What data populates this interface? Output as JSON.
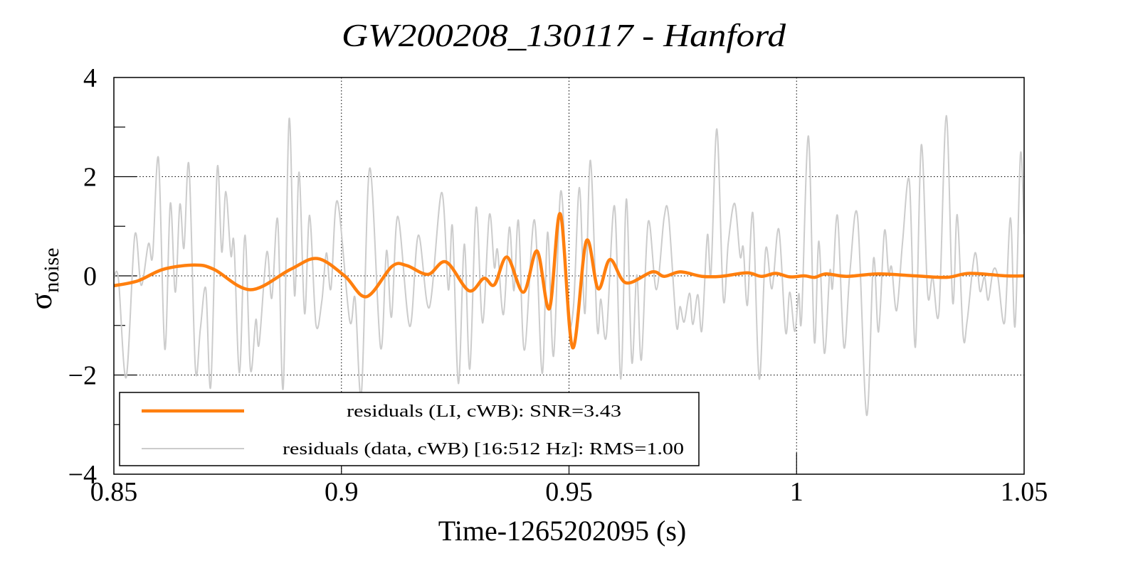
{
  "chart_data": {
    "type": "line",
    "title": "GW200208_130117 - Hanford",
    "xlabel": "Time-1265202095 (s)",
    "ylabel": "σ",
    "ylabel_sub": "noise",
    "xlim": [
      0.85,
      1.05
    ],
    "ylim": [
      -4,
      4
    ],
    "grid": true,
    "legend_position": "bottom-left",
    "xticks": [
      {
        "value": 0.85,
        "label": "0.85"
      },
      {
        "value": 0.9,
        "label": "0.9"
      },
      {
        "value": 0.95,
        "label": "0.95"
      },
      {
        "value": 1.0,
        "label": "1"
      },
      {
        "value": 1.05,
        "label": "1.05"
      }
    ],
    "yticks": [
      {
        "value": 4,
        "label": "4"
      },
      {
        "value": 2,
        "label": "2"
      },
      {
        "value": 0,
        "label": "0"
      },
      {
        "value": -2,
        "label": "−2"
      },
      {
        "value": -4,
        "label": "−4"
      }
    ],
    "series": [
      {
        "name": "residuals (data, cWB) [16:512 Hz]: RMS=1.00",
        "color": "#cccccc",
        "points": [
          [
            0.85,
            -0.04
          ],
          [
            0.851,
            -0.06
          ],
          [
            0.8527,
            -2.05
          ],
          [
            0.8546,
            0.82
          ],
          [
            0.856,
            -0.19
          ],
          [
            0.8576,
            0.65
          ],
          [
            0.8585,
            0.39
          ],
          [
            0.8598,
            2.37
          ],
          [
            0.8612,
            -1.48
          ],
          [
            0.8624,
            1.46
          ],
          [
            0.8635,
            -0.33
          ],
          [
            0.8645,
            1.44
          ],
          [
            0.8654,
            0.56
          ],
          [
            0.8665,
            2.23
          ],
          [
            0.8679,
            -1.86
          ],
          [
            0.869,
            -1.07
          ],
          [
            0.8702,
            -0.26
          ],
          [
            0.8713,
            -2.22
          ],
          [
            0.8727,
            2.16
          ],
          [
            0.8737,
            0.48
          ],
          [
            0.8746,
            1.7
          ],
          [
            0.8757,
            0.41
          ],
          [
            0.8764,
            0.65
          ],
          [
            0.8776,
            -1.96
          ],
          [
            0.8788,
            0.82
          ],
          [
            0.88,
            -1.89
          ],
          [
            0.8812,
            -0.88
          ],
          [
            0.8819,
            -1.38
          ],
          [
            0.8836,
            0.48
          ],
          [
            0.8847,
            -0.45
          ],
          [
            0.886,
            1.13
          ],
          [
            0.8872,
            -2.27
          ],
          [
            0.8885,
            3.16
          ],
          [
            0.8897,
            -0.4
          ],
          [
            0.8907,
            2.09
          ],
          [
            0.8919,
            -0.76
          ],
          [
            0.893,
            1.22
          ],
          [
            0.8944,
            -0.98
          ],
          [
            0.8957,
            -0.5
          ],
          [
            0.8967,
            0.46
          ],
          [
            0.8977,
            -0.26
          ],
          [
            0.8991,
            1.51
          ],
          [
            0.9018,
            -0.9
          ],
          [
            0.903,
            -0.45
          ],
          [
            0.9044,
            -2.36
          ],
          [
            0.9062,
            2.17
          ],
          [
            0.9086,
            -1.45
          ],
          [
            0.9099,
            0.51
          ],
          [
            0.911,
            -0.83
          ],
          [
            0.9124,
            1.2
          ],
          [
            0.915,
            -1.02
          ],
          [
            0.9169,
            0.82
          ],
          [
            0.9193,
            -0.64
          ],
          [
            0.922,
            1.68
          ],
          [
            0.9235,
            -0.28
          ],
          [
            0.9244,
            0.99
          ],
          [
            0.9257,
            -2.17
          ],
          [
            0.927,
            0.64
          ],
          [
            0.9282,
            -1.88
          ],
          [
            0.9296,
            1.38
          ],
          [
            0.931,
            -0.95
          ],
          [
            0.9325,
            1.23
          ],
          [
            0.9336,
            0.17
          ],
          [
            0.9343,
            0.52
          ],
          [
            0.9356,
            -0.78
          ],
          [
            0.9369,
            0.98
          ],
          [
            0.9379,
            -0.3
          ],
          [
            0.9389,
            1.11
          ],
          [
            0.9402,
            -1.5
          ],
          [
            0.9424,
            1.13
          ],
          [
            0.9441,
            -1.97
          ],
          [
            0.9453,
            0.88
          ],
          [
            0.9466,
            -1.62
          ],
          [
            0.9482,
            1.71
          ],
          [
            0.9498,
            -0.83
          ],
          [
            0.951,
            -0.6
          ],
          [
            0.9523,
            1.78
          ],
          [
            0.9535,
            -0.76
          ],
          [
            0.9547,
            2.33
          ],
          [
            0.9562,
            -1.05
          ],
          [
            0.957,
            -0.47
          ],
          [
            0.9582,
            -1.22
          ],
          [
            0.96,
            1.41
          ],
          [
            0.9614,
            -2.08
          ],
          [
            0.9626,
            1.55
          ],
          [
            0.9638,
            -1.74
          ],
          [
            0.9649,
            0.02
          ],
          [
            0.9659,
            -1.69
          ],
          [
            0.9674,
            1.09
          ],
          [
            0.9692,
            -0.28
          ],
          [
            0.9709,
            1.18
          ],
          [
            0.9719,
            1.19
          ],
          [
            0.9736,
            -1.0
          ],
          [
            0.9744,
            -0.62
          ],
          [
            0.9753,
            -0.93
          ],
          [
            0.9765,
            -0.35
          ],
          [
            0.9772,
            -0.98
          ],
          [
            0.9783,
            -0.38
          ],
          [
            0.9792,
            -1.1
          ],
          [
            0.9804,
            0.82
          ],
          [
            0.9812,
            0.05
          ],
          [
            0.9825,
            2.96
          ],
          [
            0.9839,
            -0.47
          ],
          [
            0.985,
            0.67
          ],
          [
            0.9864,
            1.46
          ],
          [
            0.9876,
            0.39
          ],
          [
            0.9883,
            0.57
          ],
          [
            0.9892,
            -0.59
          ],
          [
            0.9904,
            1.26
          ],
          [
            0.9918,
            -2.08
          ],
          [
            0.9932,
            0.53
          ],
          [
            0.9946,
            -0.26
          ],
          [
            0.9961,
            0.94
          ],
          [
            0.9976,
            -1.14
          ],
          [
            0.9985,
            -0.33
          ],
          [
            0.9996,
            -1.12
          ],
          [
            1.0005,
            -0.36
          ],
          [
            1.0011,
            -0.86
          ],
          [
            1.0026,
            2.82
          ],
          [
            1.0039,
            -1.32
          ],
          [
            1.0049,
            0.7
          ],
          [
            1.0061,
            -1.56
          ],
          [
            1.0073,
            0.09
          ],
          [
            1.0079,
            -0.24
          ],
          [
            1.009,
            1.21
          ],
          [
            1.0104,
            -1.44
          ],
          [
            1.0117,
            0.06
          ],
          [
            1.0134,
            1.2
          ],
          [
            1.0154,
            -2.81
          ],
          [
            1.0169,
            0.34
          ],
          [
            1.018,
            -1.13
          ],
          [
            1.0193,
            0.9
          ],
          [
            1.0202,
            0.07
          ],
          [
            1.0209,
            0.17
          ],
          [
            1.022,
            -0.7
          ],
          [
            1.0233,
            0.7
          ],
          [
            1.0248,
            1.9
          ],
          [
            1.0261,
            -1.44
          ],
          [
            1.0274,
            2.64
          ],
          [
            1.0288,
            -0.36
          ],
          [
            1.0299,
            -0.02
          ],
          [
            1.0313,
            -0.72
          ],
          [
            1.0329,
            3.23
          ],
          [
            1.0343,
            -0.53
          ],
          [
            1.0353,
            1.23
          ],
          [
            1.0366,
            -1.21
          ],
          [
            1.0375,
            -0.89
          ],
          [
            1.0392,
            0.46
          ],
          [
            1.0403,
            -0.31
          ],
          [
            1.0413,
            -0.02
          ],
          [
            1.0421,
            -0.49
          ],
          [
            1.0432,
            0.11
          ],
          [
            1.0442,
            0.0
          ],
          [
            1.0457,
            -0.94
          ],
          [
            1.047,
            1.17
          ],
          [
            1.048,
            -1.02
          ],
          [
            1.0492,
            2.46
          ],
          [
            1.05,
            0.84
          ]
        ]
      },
      {
        "name": "residuals (LI, cWB): SNR=3.43",
        "color": "#ff7f0e",
        "points": [
          [
            0.85,
            -0.2
          ],
          [
            0.8553,
            -0.1
          ],
          [
            0.8608,
            0.13
          ],
          [
            0.8677,
            0.22
          ],
          [
            0.872,
            0.13
          ],
          [
            0.88,
            -0.28
          ],
          [
            0.8888,
            0.13
          ],
          [
            0.8947,
            0.35
          ],
          [
            0.9007,
            0.0
          ],
          [
            0.9055,
            -0.42
          ],
          [
            0.9111,
            0.19
          ],
          [
            0.9143,
            0.21
          ],
          [
            0.919,
            0.03
          ],
          [
            0.923,
            0.28
          ],
          [
            0.928,
            -0.3
          ],
          [
            0.9313,
            -0.05
          ],
          [
            0.9336,
            -0.18
          ],
          [
            0.9364,
            0.38
          ],
          [
            0.94,
            -0.33
          ],
          [
            0.943,
            0.5
          ],
          [
            0.9457,
            -0.66
          ],
          [
            0.9481,
            1.25
          ],
          [
            0.9508,
            -1.45
          ],
          [
            0.9538,
            0.7
          ],
          [
            0.9564,
            -0.26
          ],
          [
            0.959,
            0.33
          ],
          [
            0.9625,
            -0.14
          ],
          [
            0.9683,
            0.08
          ],
          [
            0.9709,
            -0.01
          ],
          [
            0.9745,
            0.08
          ],
          [
            0.9792,
            -0.01
          ],
          [
            0.9834,
            -0.01
          ],
          [
            0.9891,
            0.06
          ],
          [
            0.9923,
            -0.01
          ],
          [
            0.9954,
            0.05
          ],
          [
            0.9985,
            -0.02
          ],
          [
            1.0017,
            0.0
          ],
          [
            1.004,
            -0.03
          ],
          [
            1.0065,
            0.04
          ],
          [
            1.011,
            -0.01
          ],
          [
            1.018,
            0.04
          ],
          [
            1.026,
            0.0
          ],
          [
            1.033,
            -0.03
          ],
          [
            1.038,
            0.05
          ],
          [
            1.046,
            0.0
          ],
          [
            1.05,
            0.0
          ]
        ]
      }
    ]
  }
}
